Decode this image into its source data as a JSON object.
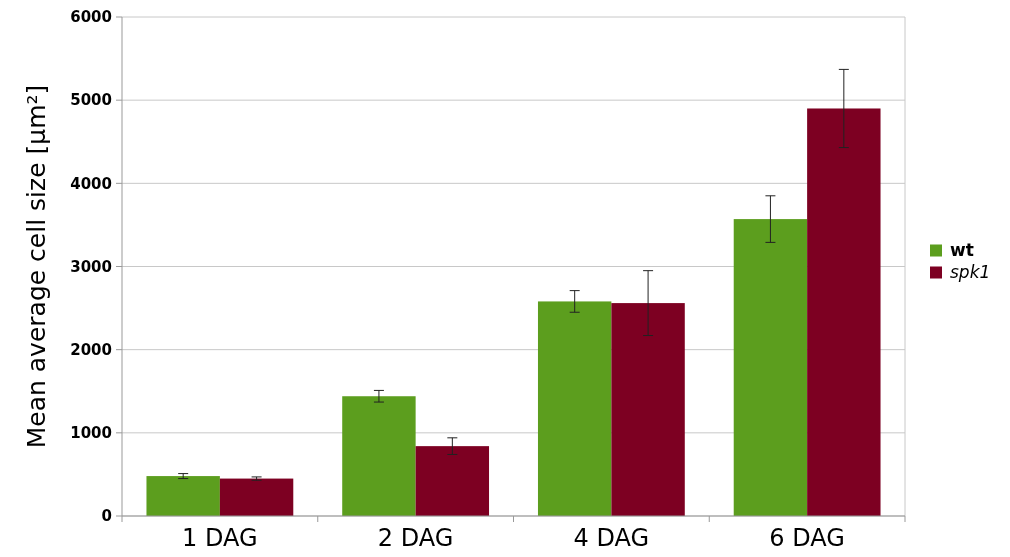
{
  "chart_data": {
    "type": "bar",
    "ylabel": "Mean average cell size [µm²]",
    "categories": [
      "1 DAG",
      "2 DAG",
      "4 DAG",
      "6 DAG"
    ],
    "series": [
      {
        "name": "wt",
        "color": "#5c9e1e",
        "values": [
          480,
          1440,
          2580,
          3570
        ],
        "errors": [
          30,
          70,
          130,
          280
        ]
      },
      {
        "name": "spk1",
        "color": "#7d0022",
        "values": [
          450,
          840,
          2560,
          4900
        ],
        "errors": [
          20,
          100,
          390,
          470
        ]
      }
    ],
    "ylim": [
      0,
      6000
    ],
    "yticks": [
      0,
      1000,
      2000,
      3000,
      4000,
      5000,
      6000
    ],
    "grid": "y",
    "legend": "right"
  }
}
